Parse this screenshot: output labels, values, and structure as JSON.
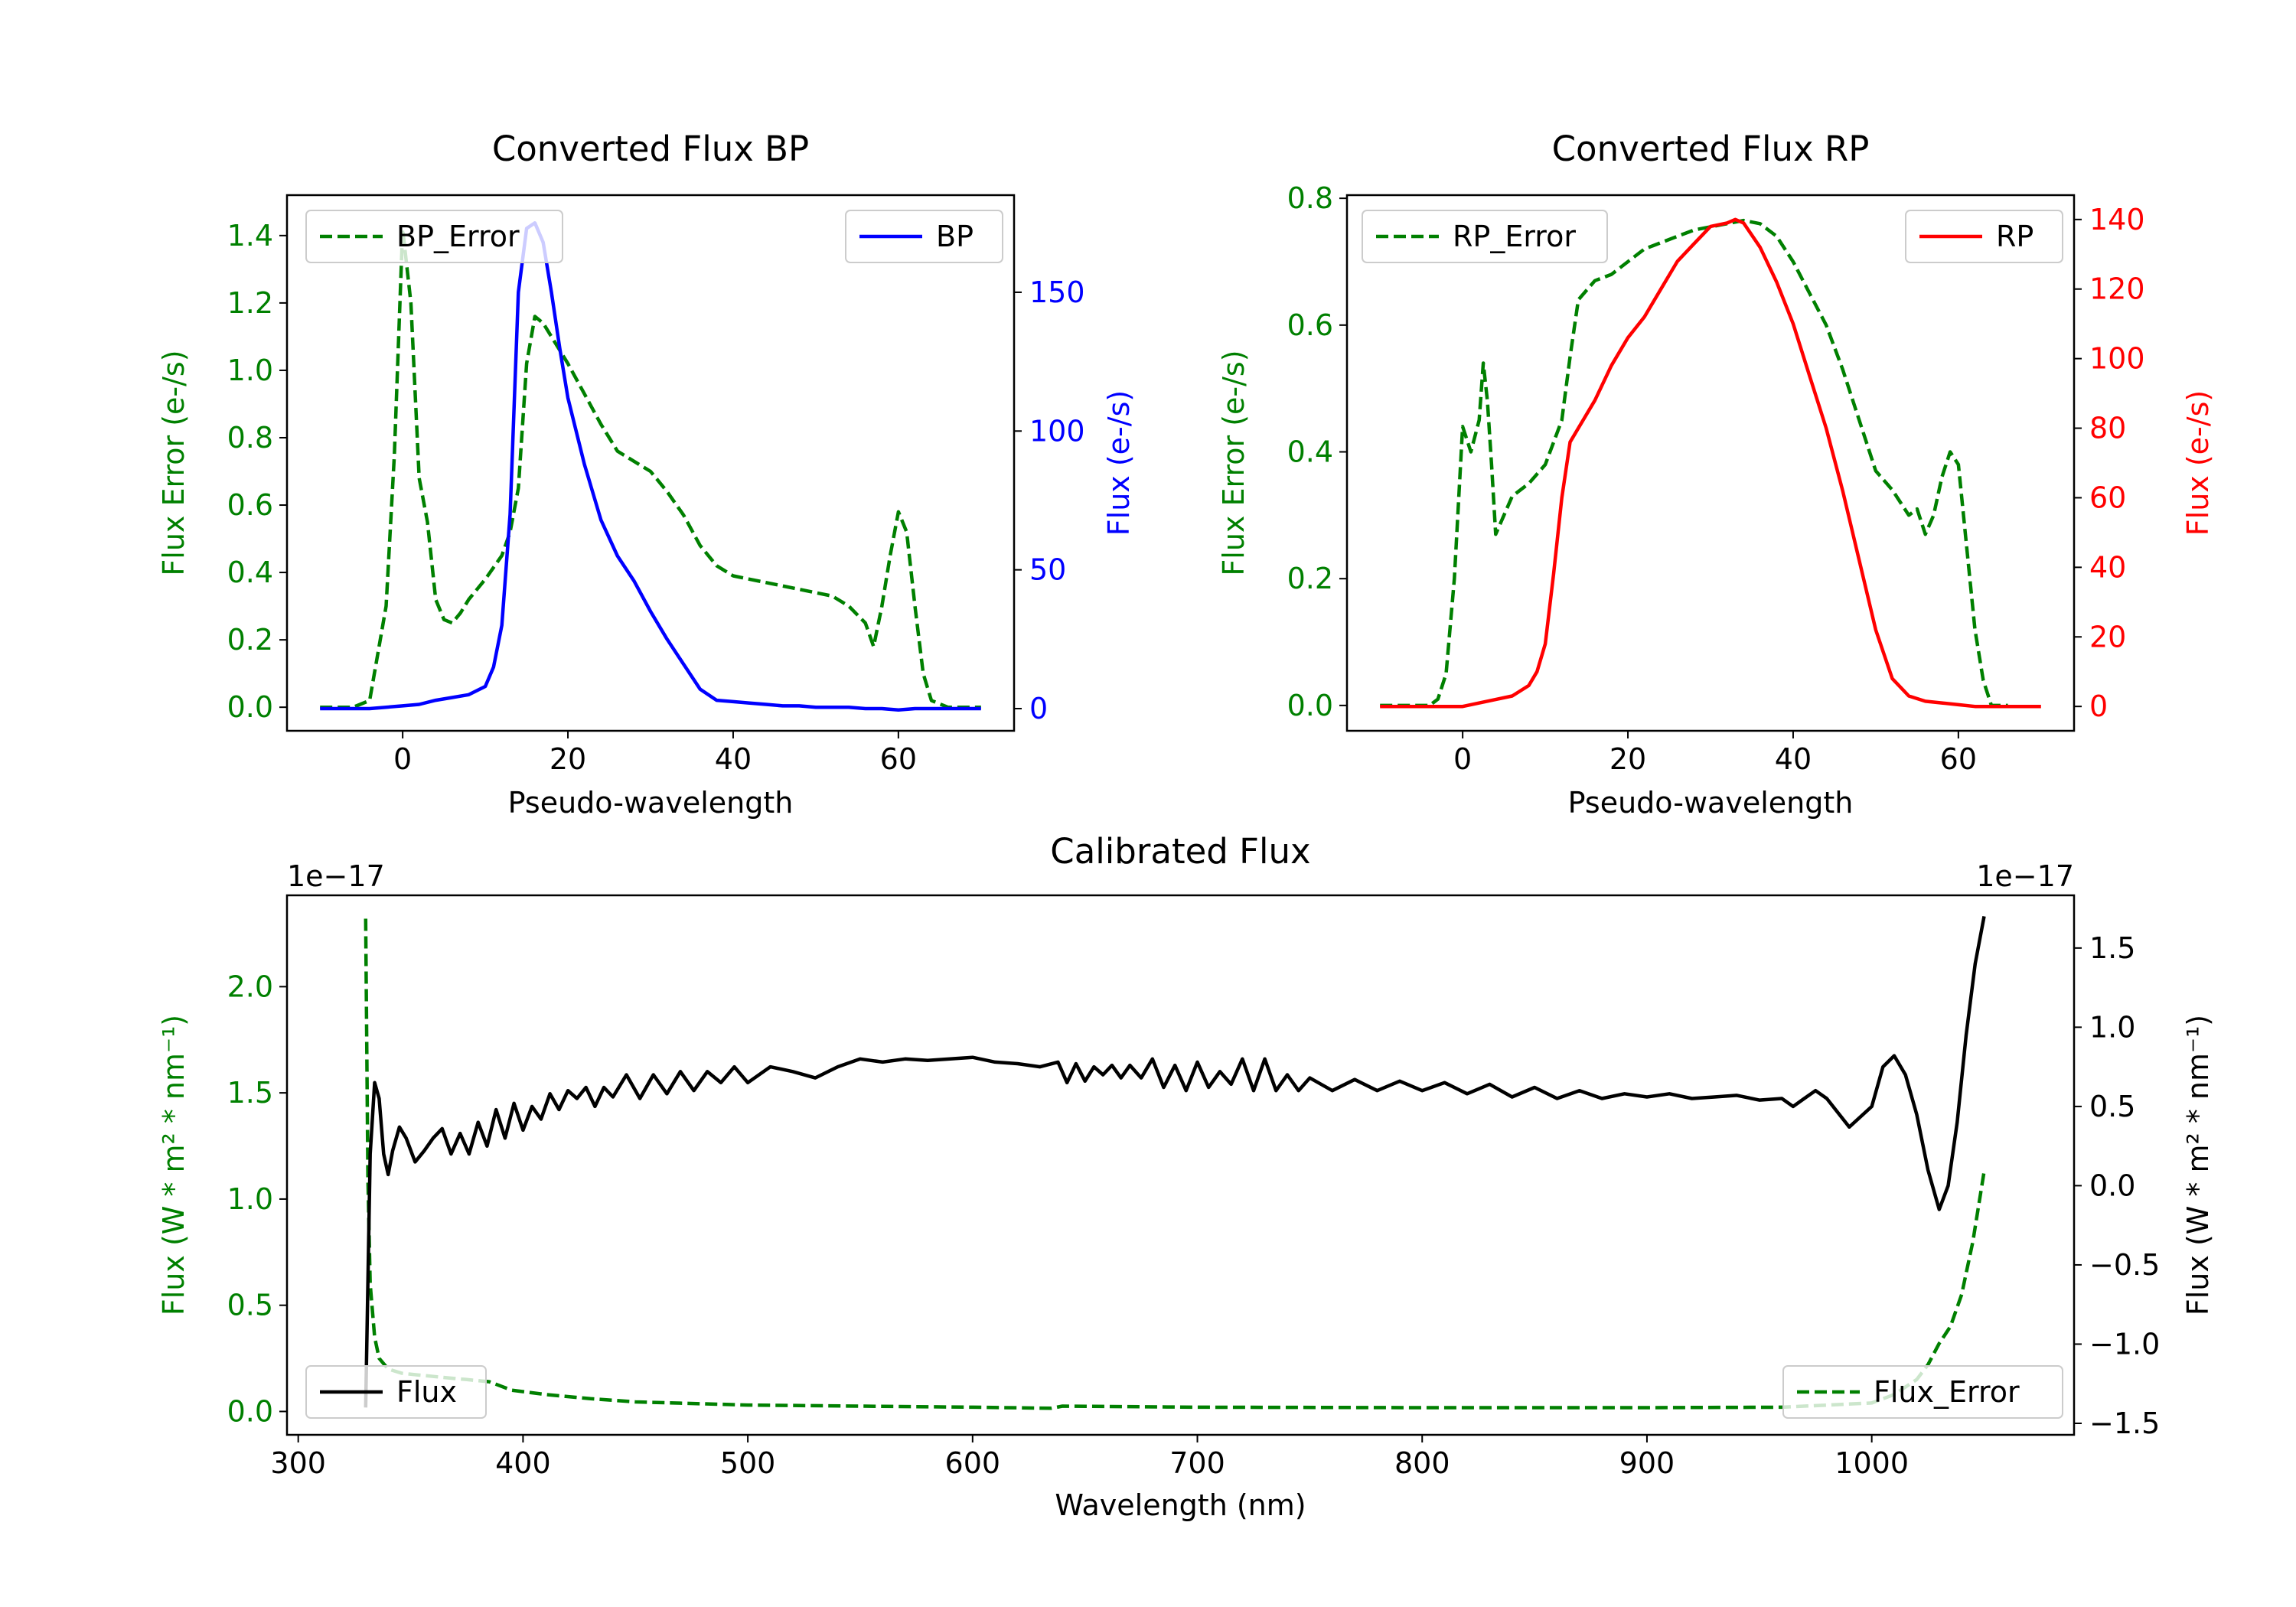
{
  "colors": {
    "green": "#008000",
    "blue": "#0000ff",
    "red": "#ff0000",
    "black": "#000000"
  },
  "chart_data": [
    {
      "id": "bp",
      "type": "line",
      "title": "Converted Flux BP",
      "xlabel": "Pseudo-wavelength",
      "xlim": [
        -14,
        74
      ],
      "xticks": [
        0,
        20,
        40,
        60
      ],
      "ylabel_left": "Flux Error (e-/s)",
      "ylim_left": [
        -0.07,
        1.52
      ],
      "yticks_left": [
        "0.0",
        "0.2",
        "0.4",
        "0.6",
        "0.8",
        "1.0",
        "1.2",
        "1.4"
      ],
      "ylabel_right": "Flux (e-/s)",
      "ylim_right": [
        -8,
        185
      ],
      "yticks_right": [
        "0",
        "50",
        "100",
        "150"
      ],
      "legend_left": "BP_Error",
      "legend_right": "BP",
      "series": [
        {
          "name": "BP_Error",
          "axis": "left",
          "color": "#008000",
          "style": "dashed",
          "x": [
            -10,
            -6,
            -4,
            -2,
            -1,
            0,
            1,
            2,
            3,
            4,
            5,
            6,
            7,
            8,
            10,
            12,
            13,
            14,
            15,
            16,
            17,
            18,
            19,
            20,
            22,
            24,
            26,
            30,
            32,
            34,
            36,
            38,
            40,
            42,
            44,
            48,
            52,
            54,
            56,
            57,
            58,
            59,
            60,
            61,
            62,
            63,
            64,
            66,
            70
          ],
          "y": [
            0.0,
            0.0,
            0.02,
            0.3,
            0.75,
            1.42,
            1.2,
            0.68,
            0.55,
            0.32,
            0.26,
            0.25,
            0.28,
            0.32,
            0.38,
            0.45,
            0.52,
            0.65,
            1.02,
            1.16,
            1.14,
            1.1,
            1.06,
            1.02,
            0.93,
            0.84,
            0.76,
            0.7,
            0.64,
            0.57,
            0.48,
            0.42,
            0.39,
            0.38,
            0.37,
            0.35,
            0.33,
            0.3,
            0.25,
            0.18,
            0.3,
            0.45,
            0.58,
            0.52,
            0.3,
            0.1,
            0.02,
            0.0,
            0.0
          ]
        },
        {
          "name": "BP",
          "axis": "right",
          "color": "#0000ff",
          "style": "solid",
          "x": [
            -10,
            -4,
            0,
            2,
            4,
            6,
            8,
            10,
            11,
            12,
            13,
            14,
            15,
            16,
            17,
            18,
            19,
            20,
            22,
            24,
            26,
            28,
            30,
            32,
            34,
            36,
            38,
            40,
            42,
            44,
            46,
            48,
            50,
            52,
            54,
            56,
            58,
            60,
            62,
            66,
            70
          ],
          "y": [
            0,
            0,
            1,
            1.5,
            3,
            4,
            5,
            8,
            15,
            30,
            70,
            150,
            173,
            175,
            168,
            150,
            130,
            112,
            88,
            68,
            55,
            46,
            35,
            25,
            16,
            7,
            3,
            2.5,
            2,
            1.5,
            1,
            1,
            0.5,
            0.5,
            0.5,
            0,
            0,
            -0.5,
            0,
            0,
            0
          ]
        }
      ]
    },
    {
      "id": "rp",
      "type": "line",
      "title": "Converted Flux RP",
      "xlabel": "Pseudo-wavelength",
      "xlim": [
        -14,
        74
      ],
      "xticks": [
        0,
        20,
        40,
        60
      ],
      "ylabel_left": "Flux Error (e-/s)",
      "ylim_left": [
        -0.04,
        0.805
      ],
      "yticks_left": [
        "0.0",
        "0.2",
        "0.4",
        "0.6",
        "0.8"
      ],
      "ylabel_right": "Flux (e-/s)",
      "ylim_right": [
        -7,
        147
      ],
      "yticks_right": [
        "0",
        "20",
        "40",
        "60",
        "80",
        "100",
        "120",
        "140"
      ],
      "legend_left": "RP_Error",
      "legend_right": "RP",
      "series": [
        {
          "name": "RP_Error",
          "axis": "left",
          "color": "#008000",
          "style": "dashed",
          "x": [
            -10,
            -4,
            -3,
            -2,
            -1,
            0,
            1,
            2,
            2.5,
            3,
            3.5,
            4,
            5,
            6,
            8,
            10,
            12,
            13,
            14,
            16,
            18,
            20,
            22,
            24,
            26,
            28,
            30,
            32,
            34,
            36,
            38,
            40,
            42,
            44,
            46,
            48,
            50,
            52,
            54,
            55,
            56,
            57,
            58,
            59,
            60,
            61,
            62,
            63,
            64,
            66
          ],
          "y": [
            0.0,
            0.0,
            0.01,
            0.05,
            0.2,
            0.44,
            0.4,
            0.45,
            0.54,
            0.48,
            0.38,
            0.27,
            0.3,
            0.33,
            0.35,
            0.38,
            0.45,
            0.55,
            0.64,
            0.67,
            0.68,
            0.7,
            0.72,
            0.73,
            0.74,
            0.75,
            0.755,
            0.76,
            0.765,
            0.76,
            0.74,
            0.7,
            0.65,
            0.6,
            0.53,
            0.45,
            0.37,
            0.34,
            0.3,
            0.31,
            0.27,
            0.3,
            0.36,
            0.4,
            0.38,
            0.25,
            0.12,
            0.04,
            0.0,
            0.0
          ]
        },
        {
          "name": "RP",
          "axis": "right",
          "color": "#ff0000",
          "style": "solid",
          "x": [
            -10,
            0,
            4,
            6,
            8,
            9,
            10,
            11,
            12,
            13,
            14,
            16,
            18,
            20,
            22,
            24,
            26,
            28,
            30,
            32,
            33,
            34,
            36,
            38,
            40,
            42,
            44,
            46,
            48,
            50,
            52,
            54,
            56,
            58,
            60,
            62,
            66,
            70
          ],
          "y": [
            0,
            0,
            2,
            3,
            6,
            10,
            18,
            38,
            60,
            76,
            80,
            88,
            98,
            106,
            112,
            120,
            128,
            133,
            138,
            139,
            140,
            139,
            132,
            122,
            110,
            95,
            80,
            62,
            42,
            22,
            8,
            3,
            1.5,
            1,
            0.5,
            0,
            0,
            0
          ]
        }
      ]
    },
    {
      "id": "calibrated",
      "type": "line",
      "title": "Calibrated Flux",
      "xlabel": "Wavelength (nm)",
      "xlim": [
        295,
        1090
      ],
      "xticks": [
        300,
        400,
        500,
        600,
        700,
        800,
        900,
        1000
      ],
      "ylabel_left": "Flux (W * m² * nm⁻¹)",
      "ylim_left": [
        -0.11,
        2.43
      ],
      "yticks_left": [
        "0.0",
        "0.5",
        "1.0",
        "1.5",
        "2.0"
      ],
      "offset_left": "1e−17",
      "ylabel_right": "Flux (W * m² * nm⁻¹)",
      "ylim_right": [
        -1.5725,
        1.8325
      ],
      "yticks_right": [
        "−1.5",
        "−1.0",
        "−0.5",
        "0.0",
        "0.5",
        "1.0",
        "1.5"
      ],
      "offset_right": "1e−17",
      "legend_left": "Flux",
      "legend_right": "Flux_Error",
      "series": [
        {
          "name": "Flux_Error",
          "axis": "left",
          "color": "#008000",
          "style": "dashed",
          "x": [
            330,
            331,
            332,
            334,
            336,
            340,
            346,
            355,
            365,
            375,
            385,
            395,
            410,
            430,
            450,
            500,
            550,
            600,
            635,
            640,
            700,
            800,
            900,
            960,
            1000,
            1010,
            1020,
            1025,
            1030,
            1035,
            1040,
            1045,
            1050
          ],
          "y": [
            2.32,
            1.1,
            0.6,
            0.35,
            0.25,
            0.2,
            0.18,
            0.17,
            0.16,
            0.15,
            0.14,
            0.1,
            0.08,
            0.06,
            0.045,
            0.03,
            0.025,
            0.02,
            0.015,
            0.025,
            0.02,
            0.018,
            0.018,
            0.02,
            0.04,
            0.08,
            0.15,
            0.22,
            0.32,
            0.4,
            0.55,
            0.8,
            1.13
          ]
        },
        {
          "name": "Flux",
          "axis": "right",
          "color": "#000000",
          "style": "solid",
          "x": [
            330,
            332,
            334,
            336,
            338,
            340,
            342,
            345,
            348,
            352,
            356,
            360,
            364,
            368,
            372,
            376,
            380,
            384,
            388,
            392,
            396,
            400,
            404,
            408,
            412,
            416,
            420,
            424,
            428,
            432,
            436,
            440,
            446,
            452,
            458,
            464,
            470,
            476,
            482,
            488,
            494,
            500,
            510,
            520,
            530,
            540,
            550,
            560,
            570,
            580,
            590,
            600,
            610,
            620,
            630,
            638,
            642,
            646,
            650,
            654,
            658,
            662,
            666,
            670,
            675,
            680,
            685,
            690,
            695,
            700,
            705,
            710,
            715,
            720,
            725,
            730,
            735,
            740,
            745,
            750,
            760,
            770,
            780,
            790,
            800,
            810,
            820,
            830,
            840,
            850,
            860,
            870,
            880,
            890,
            900,
            910,
            920,
            930,
            940,
            950,
            960,
            965,
            970,
            975,
            980,
            990,
            1000,
            1005,
            1010,
            1015,
            1020,
            1025,
            1030,
            1034,
            1038,
            1042,
            1046,
            1050
          ],
          "y": [
            -1.4,
            0.2,
            0.65,
            0.55,
            0.2,
            0.07,
            0.22,
            0.37,
            0.3,
            0.15,
            0.22,
            0.3,
            0.36,
            0.2,
            0.33,
            0.2,
            0.4,
            0.25,
            0.48,
            0.3,
            0.52,
            0.35,
            0.5,
            0.42,
            0.58,
            0.48,
            0.6,
            0.55,
            0.62,
            0.5,
            0.62,
            0.56,
            0.7,
            0.55,
            0.7,
            0.58,
            0.72,
            0.6,
            0.72,
            0.65,
            0.75,
            0.65,
            0.75,
            0.72,
            0.68,
            0.75,
            0.8,
            0.78,
            0.8,
            0.79,
            0.8,
            0.81,
            0.78,
            0.77,
            0.75,
            0.78,
            0.65,
            0.77,
            0.66,
            0.75,
            0.7,
            0.76,
            0.68,
            0.76,
            0.68,
            0.8,
            0.62,
            0.76,
            0.6,
            0.78,
            0.62,
            0.72,
            0.64,
            0.8,
            0.6,
            0.8,
            0.6,
            0.7,
            0.6,
            0.68,
            0.6,
            0.67,
            0.6,
            0.66,
            0.6,
            0.65,
            0.58,
            0.64,
            0.56,
            0.62,
            0.55,
            0.6,
            0.55,
            0.58,
            0.56,
            0.58,
            0.55,
            0.56,
            0.57,
            0.54,
            0.55,
            0.5,
            0.55,
            0.6,
            0.55,
            0.37,
            0.5,
            0.75,
            0.82,
            0.7,
            0.45,
            0.1,
            -0.15,
            0.0,
            0.4,
            0.95,
            1.4,
            1.7
          ]
        }
      ]
    }
  ]
}
